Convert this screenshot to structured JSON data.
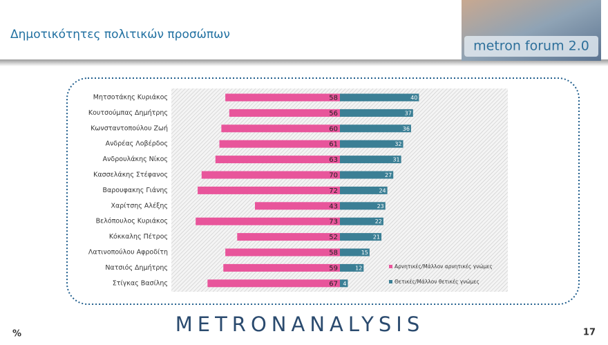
{
  "header": {
    "title": "Δημοτικότητες πολιτικών προσώπων",
    "logo": "metron forum 2.0"
  },
  "footer": {
    "brand": "METRONANALYSIS",
    "unit": "%",
    "page": "17"
  },
  "chart_data": {
    "type": "diverging-bar",
    "categories": [
      "Μητσοτάκης Κυριάκος",
      "Κουτσούμπας Δημήτρης",
      "Κωνσταντοπούλου Ζωή",
      "Ανδρέας Λοβέρδος",
      "Ανδρουλάκης Νίκος",
      "Κασσελάκης Στέφανος",
      "Βαρουφακης Γιάνης",
      "Χαρίτσης Αλέξης",
      "Βελόπουλος Κυριάκος",
      "Κόκκαλης Πέτρος",
      "Λατινοπούλου Αφροδίτη",
      "Νατσιός Δημήτρης",
      "Στίγκας Βασίλης"
    ],
    "series": [
      {
        "name": "Αρνητικές/Μάλλον αρνητικές γνώμες",
        "color": "#e8559b",
        "values": [
          58,
          56,
          60,
          61,
          63,
          70,
          72,
          43,
          73,
          52,
          58,
          59,
          67
        ]
      },
      {
        "name": "Θετικές/Μάλλον θετικές γνώμες",
        "color": "#3b7f95",
        "values": [
          40,
          37,
          36,
          32,
          31,
          27,
          24,
          23,
          22,
          21,
          15,
          12,
          4
        ]
      }
    ],
    "legend": "bottom-right"
  }
}
